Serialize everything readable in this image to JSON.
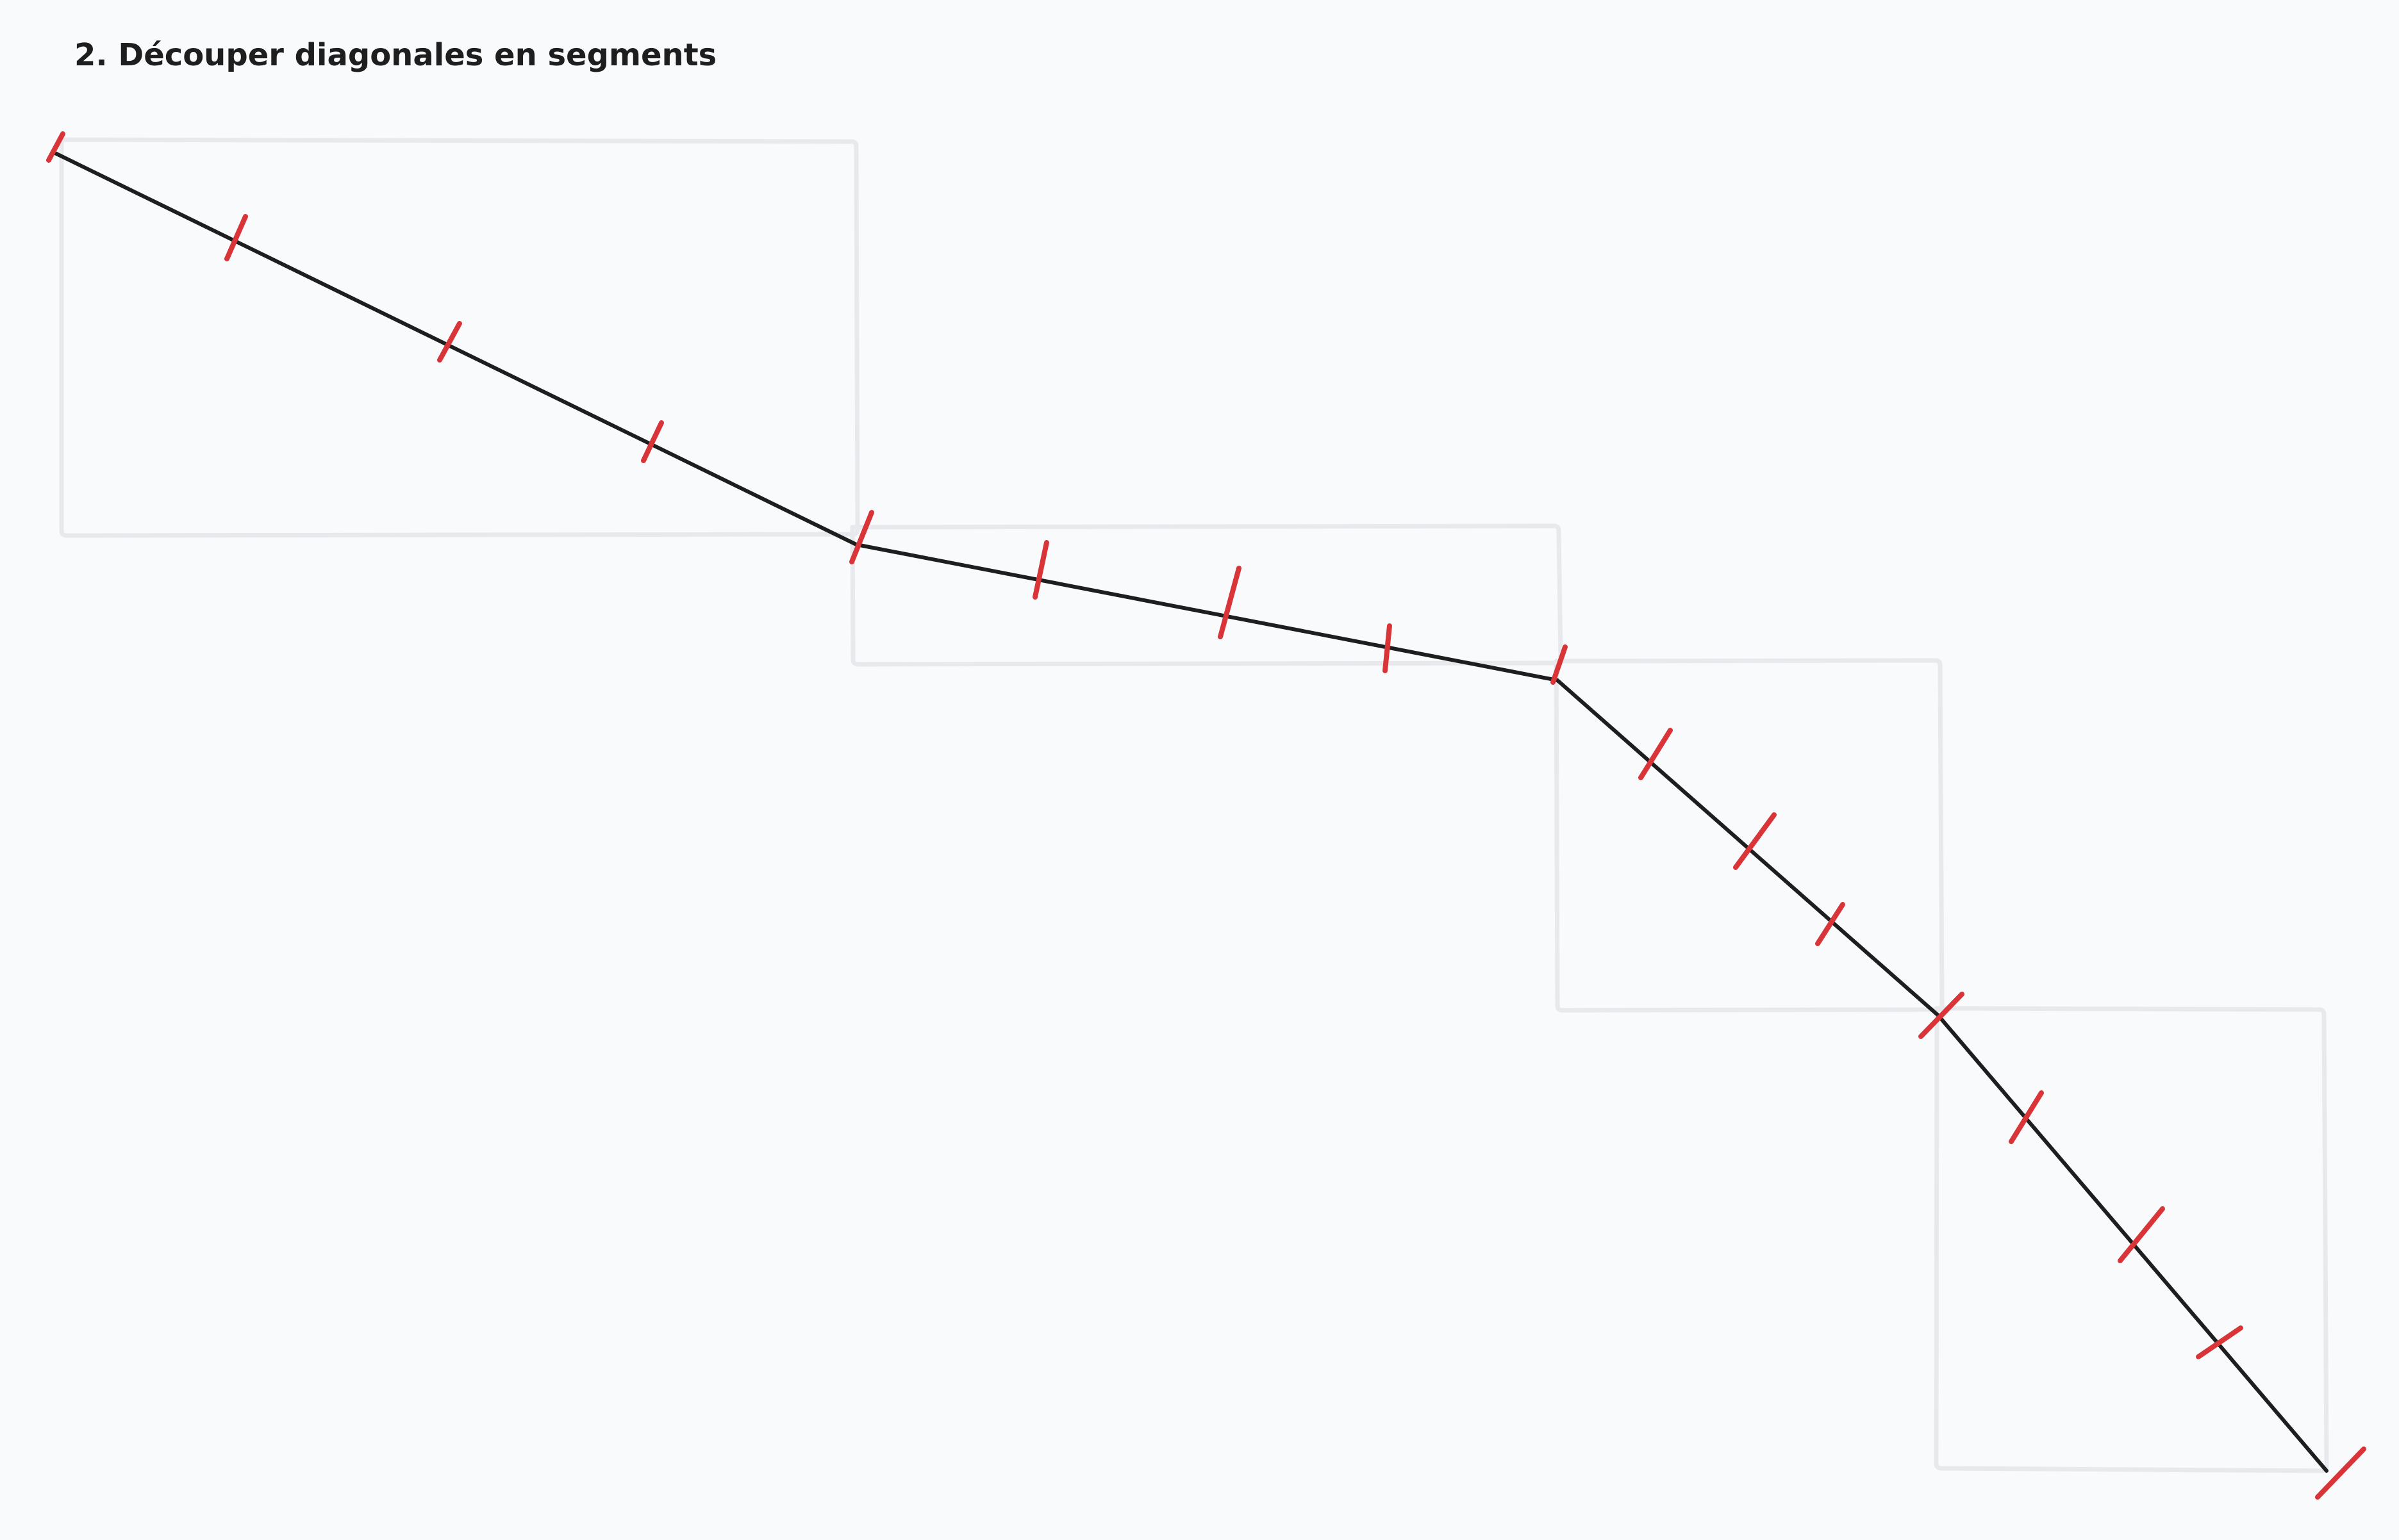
{
  "title": "2. Découper diagonales en segments",
  "colors": {
    "background": "#f9fafc",
    "box_stroke": "#e8e9ec",
    "diagonal_stroke": "#1e1e1e",
    "tick_stroke": "#d93438"
  }
}
